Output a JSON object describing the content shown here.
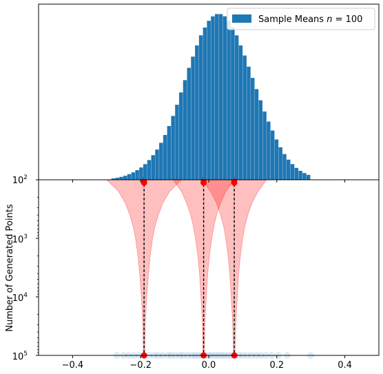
{
  "chart_data": [
    {
      "panel": "top",
      "type": "bar",
      "title": "",
      "xlabel": "",
      "ylabel": "",
      "series": [
        {
          "name": "Sample Means",
          "legend_suffix_math": "n = 100",
          "legend_n": "100",
          "color": "#1f77b4"
        }
      ],
      "legend": {
        "placement": "top-right"
      },
      "ytick_labels": [
        {
          "base": "10",
          "exp": "2"
        }
      ],
      "bins": {
        "x_start": -0.286,
        "bin_width": 0.0117,
        "x_end": 0.298
      },
      "counts": [
        600,
        900,
        1300,
        1800,
        2500,
        3300,
        4300,
        5500,
        7000,
        8800,
        11000,
        13500,
        16500,
        20000,
        24000,
        28500,
        33500,
        39000,
        44500,
        50000,
        55000,
        60000,
        64500,
        68000,
        71000,
        73000,
        74000,
        74000,
        73000,
        71000,
        68000,
        64500,
        60000,
        55500,
        50500,
        45500,
        40500,
        35500,
        30500,
        26000,
        22000,
        18000,
        14500,
        11500,
        9000,
        7000,
        5300,
        4000,
        3000,
        2200
      ]
    },
    {
      "panel": "bottom",
      "type": "area",
      "title": "",
      "xlabel": "",
      "ylabel": "Number of Generated Points",
      "xlim": [
        -0.5,
        0.5
      ],
      "ylim_log": [
        2,
        5
      ],
      "y_inverted": true,
      "y_scale": "log",
      "xticks": [
        -0.4,
        -0.2,
        0.0,
        0.2,
        0.4
      ],
      "xtick_labels": [
        "−0.4",
        "−0.2",
        "0.0",
        "0.2",
        "0.4"
      ],
      "ytick_labels": [
        {
          "base": "10",
          "exp": "2"
        },
        {
          "base": "10",
          "exp": "3"
        },
        {
          "base": "10",
          "exp": "4"
        },
        {
          "base": "10",
          "exp": "5"
        }
      ],
      "fill_color": "#ff0000",
      "fill_alpha": 0.25,
      "marker_color": "#ff0000",
      "distributions": [
        {
          "center": -0.19,
          "halfwidth": [
            [
              2.0,
              0.11
            ],
            [
              2.2,
              0.075
            ],
            [
              2.4,
              0.055
            ],
            [
              2.6,
              0.042
            ],
            [
              2.8,
              0.032
            ],
            [
              3.0,
              0.025
            ],
            [
              3.3,
              0.018
            ],
            [
              3.6,
              0.013
            ],
            [
              4.0,
              0.008
            ],
            [
              4.4,
              0.004
            ],
            [
              5.0,
              0.002
            ]
          ]
        },
        {
          "center": -0.015,
          "halfwidth": [
            [
              2.0,
              0.09
            ],
            [
              2.2,
              0.065
            ],
            [
              2.4,
              0.05
            ],
            [
              2.6,
              0.038
            ],
            [
              2.8,
              0.03
            ],
            [
              3.0,
              0.024
            ],
            [
              3.3,
              0.017
            ],
            [
              3.6,
              0.012
            ],
            [
              4.0,
              0.008
            ],
            [
              4.4,
              0.004
            ],
            [
              5.0,
              0.002
            ]
          ]
        },
        {
          "center": 0.075,
          "halfwidth": [
            [
              2.0,
              0.095
            ],
            [
              2.2,
              0.07
            ],
            [
              2.4,
              0.052
            ],
            [
              2.6,
              0.04
            ],
            [
              2.8,
              0.031
            ],
            [
              3.0,
              0.025
            ],
            [
              3.3,
              0.018
            ],
            [
              3.6,
              0.013
            ],
            [
              4.0,
              0.009
            ],
            [
              4.4,
              0.005
            ],
            [
              5.0,
              0.002
            ]
          ]
        }
      ],
      "top_markers_logy": [
        2.0,
        2.05
      ],
      "bottom_marker_logy": 5.0,
      "scatter_points": {
        "color": "#1f77b4",
        "alpha": 0.15,
        "logy": 5.0,
        "x": [
          -0.27,
          -0.25,
          -0.235,
          -0.22,
          -0.205,
          -0.19,
          -0.175,
          -0.16,
          -0.148,
          -0.135,
          -0.12,
          -0.11,
          -0.098,
          -0.085,
          -0.075,
          -0.062,
          -0.05,
          -0.04,
          -0.03,
          -0.02,
          -0.01,
          0.0,
          0.008,
          0.018,
          0.027,
          0.037,
          0.046,
          0.056,
          0.066,
          0.077,
          0.088,
          0.1,
          0.113,
          0.126,
          0.14,
          0.153,
          0.168,
          0.185,
          0.205,
          0.23,
          0.3
        ]
      }
    }
  ]
}
